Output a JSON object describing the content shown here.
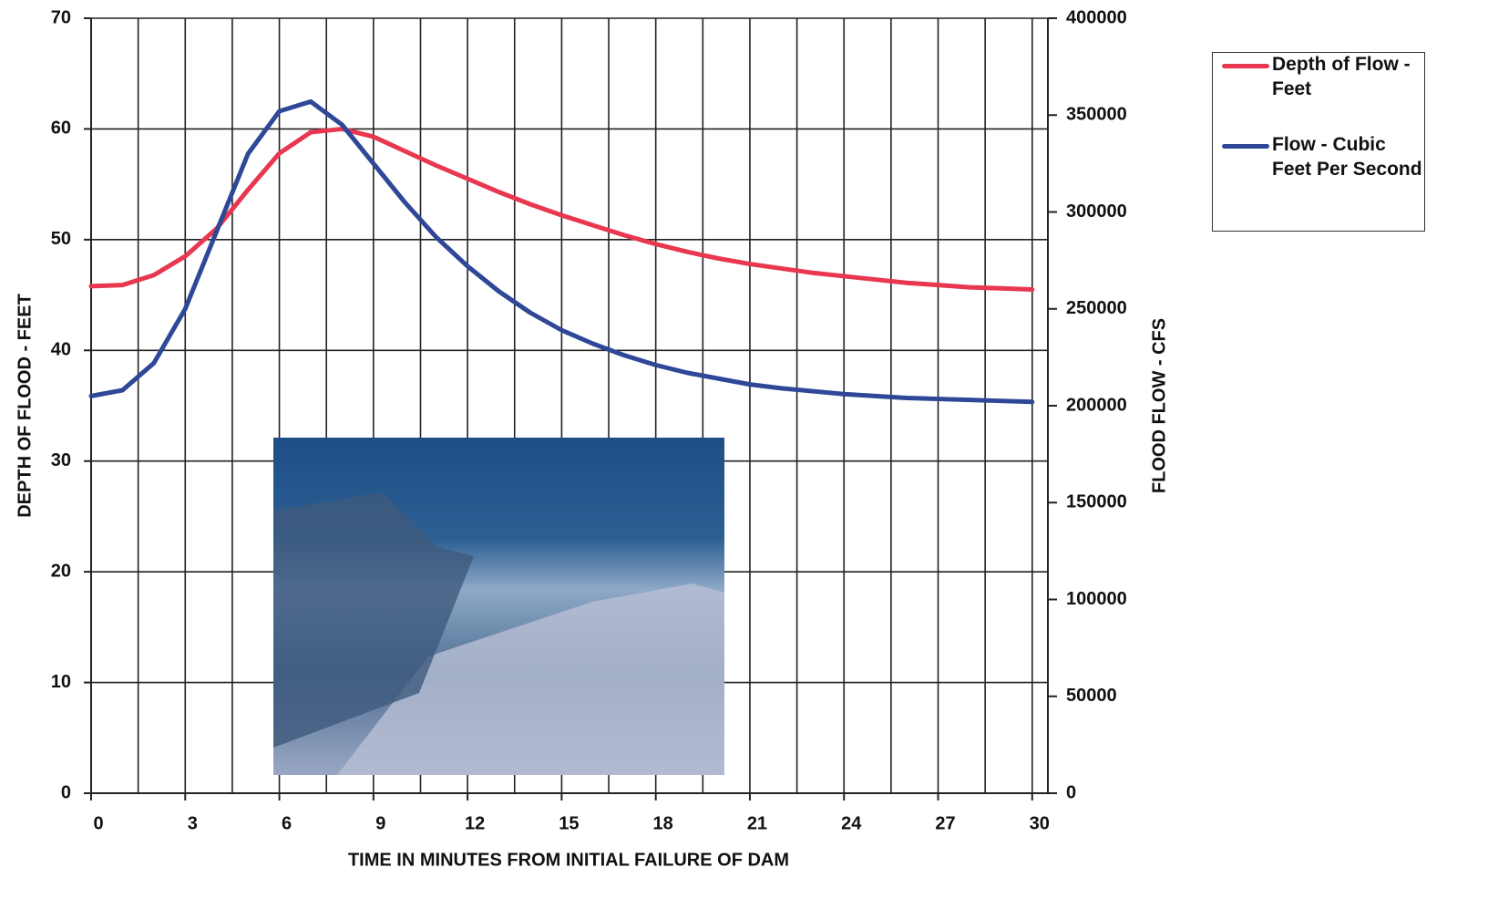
{
  "chart_data": {
    "type": "line",
    "x": [
      0,
      1,
      2,
      3,
      4,
      5,
      6,
      7,
      8,
      9,
      10,
      11,
      12,
      13,
      14,
      15,
      16,
      17,
      18,
      19,
      20,
      21,
      22,
      23,
      24,
      25,
      26,
      27,
      28,
      29,
      30
    ],
    "series": [
      {
        "name": "Depth of Flow - Feet",
        "color": "#e8374f",
        "values": [
          45.8,
          45.9,
          46.8,
          48.5,
          51,
          54.5,
          57.8,
          59.7,
          60,
          59.3,
          58,
          56.7,
          55.5,
          54.3,
          53.2,
          52.2,
          51.3,
          50.4,
          49.6,
          48.9,
          48.3,
          47.8,
          47.4,
          47,
          46.7,
          46.4,
          46.1,
          45.9,
          45.7,
          45.6,
          45.5
        ]
      },
      {
        "name": "Flow - Cubic Feet Per Second",
        "color": "#2e4797",
        "axis": "y2",
        "values": [
          205000,
          208000,
          222000,
          250000,
          290000,
          330000,
          352000,
          357000,
          345000,
          325000,
          305000,
          287000,
          272000,
          259000,
          248000,
          239000,
          232000,
          226000,
          221000,
          217000,
          214000,
          211000,
          209000,
          207500,
          206000,
          205000,
          204000,
          203500,
          203000,
          202500,
          202000
        ]
      }
    ],
    "xlabel": "TIME IN MINUTES FROM INITIAL FAILURE OF DAM",
    "ylabel": "DEPTH OF FLOOD - FEET",
    "y2label": "FLOOD FLOW - CFS",
    "xlim": [
      0,
      30.5
    ],
    "xticks": [
      0,
      3,
      6,
      9,
      12,
      15,
      18,
      21,
      24,
      27,
      30
    ],
    "ylim": [
      0,
      70
    ],
    "yticks": [
      0,
      10,
      20,
      30,
      40,
      50,
      60,
      70
    ],
    "y2lim": [
      0,
      400000
    ],
    "y2ticks": [
      0,
      50000,
      100000,
      150000,
      200000,
      250000,
      300000,
      350000,
      400000
    ],
    "grid": true
  }
}
